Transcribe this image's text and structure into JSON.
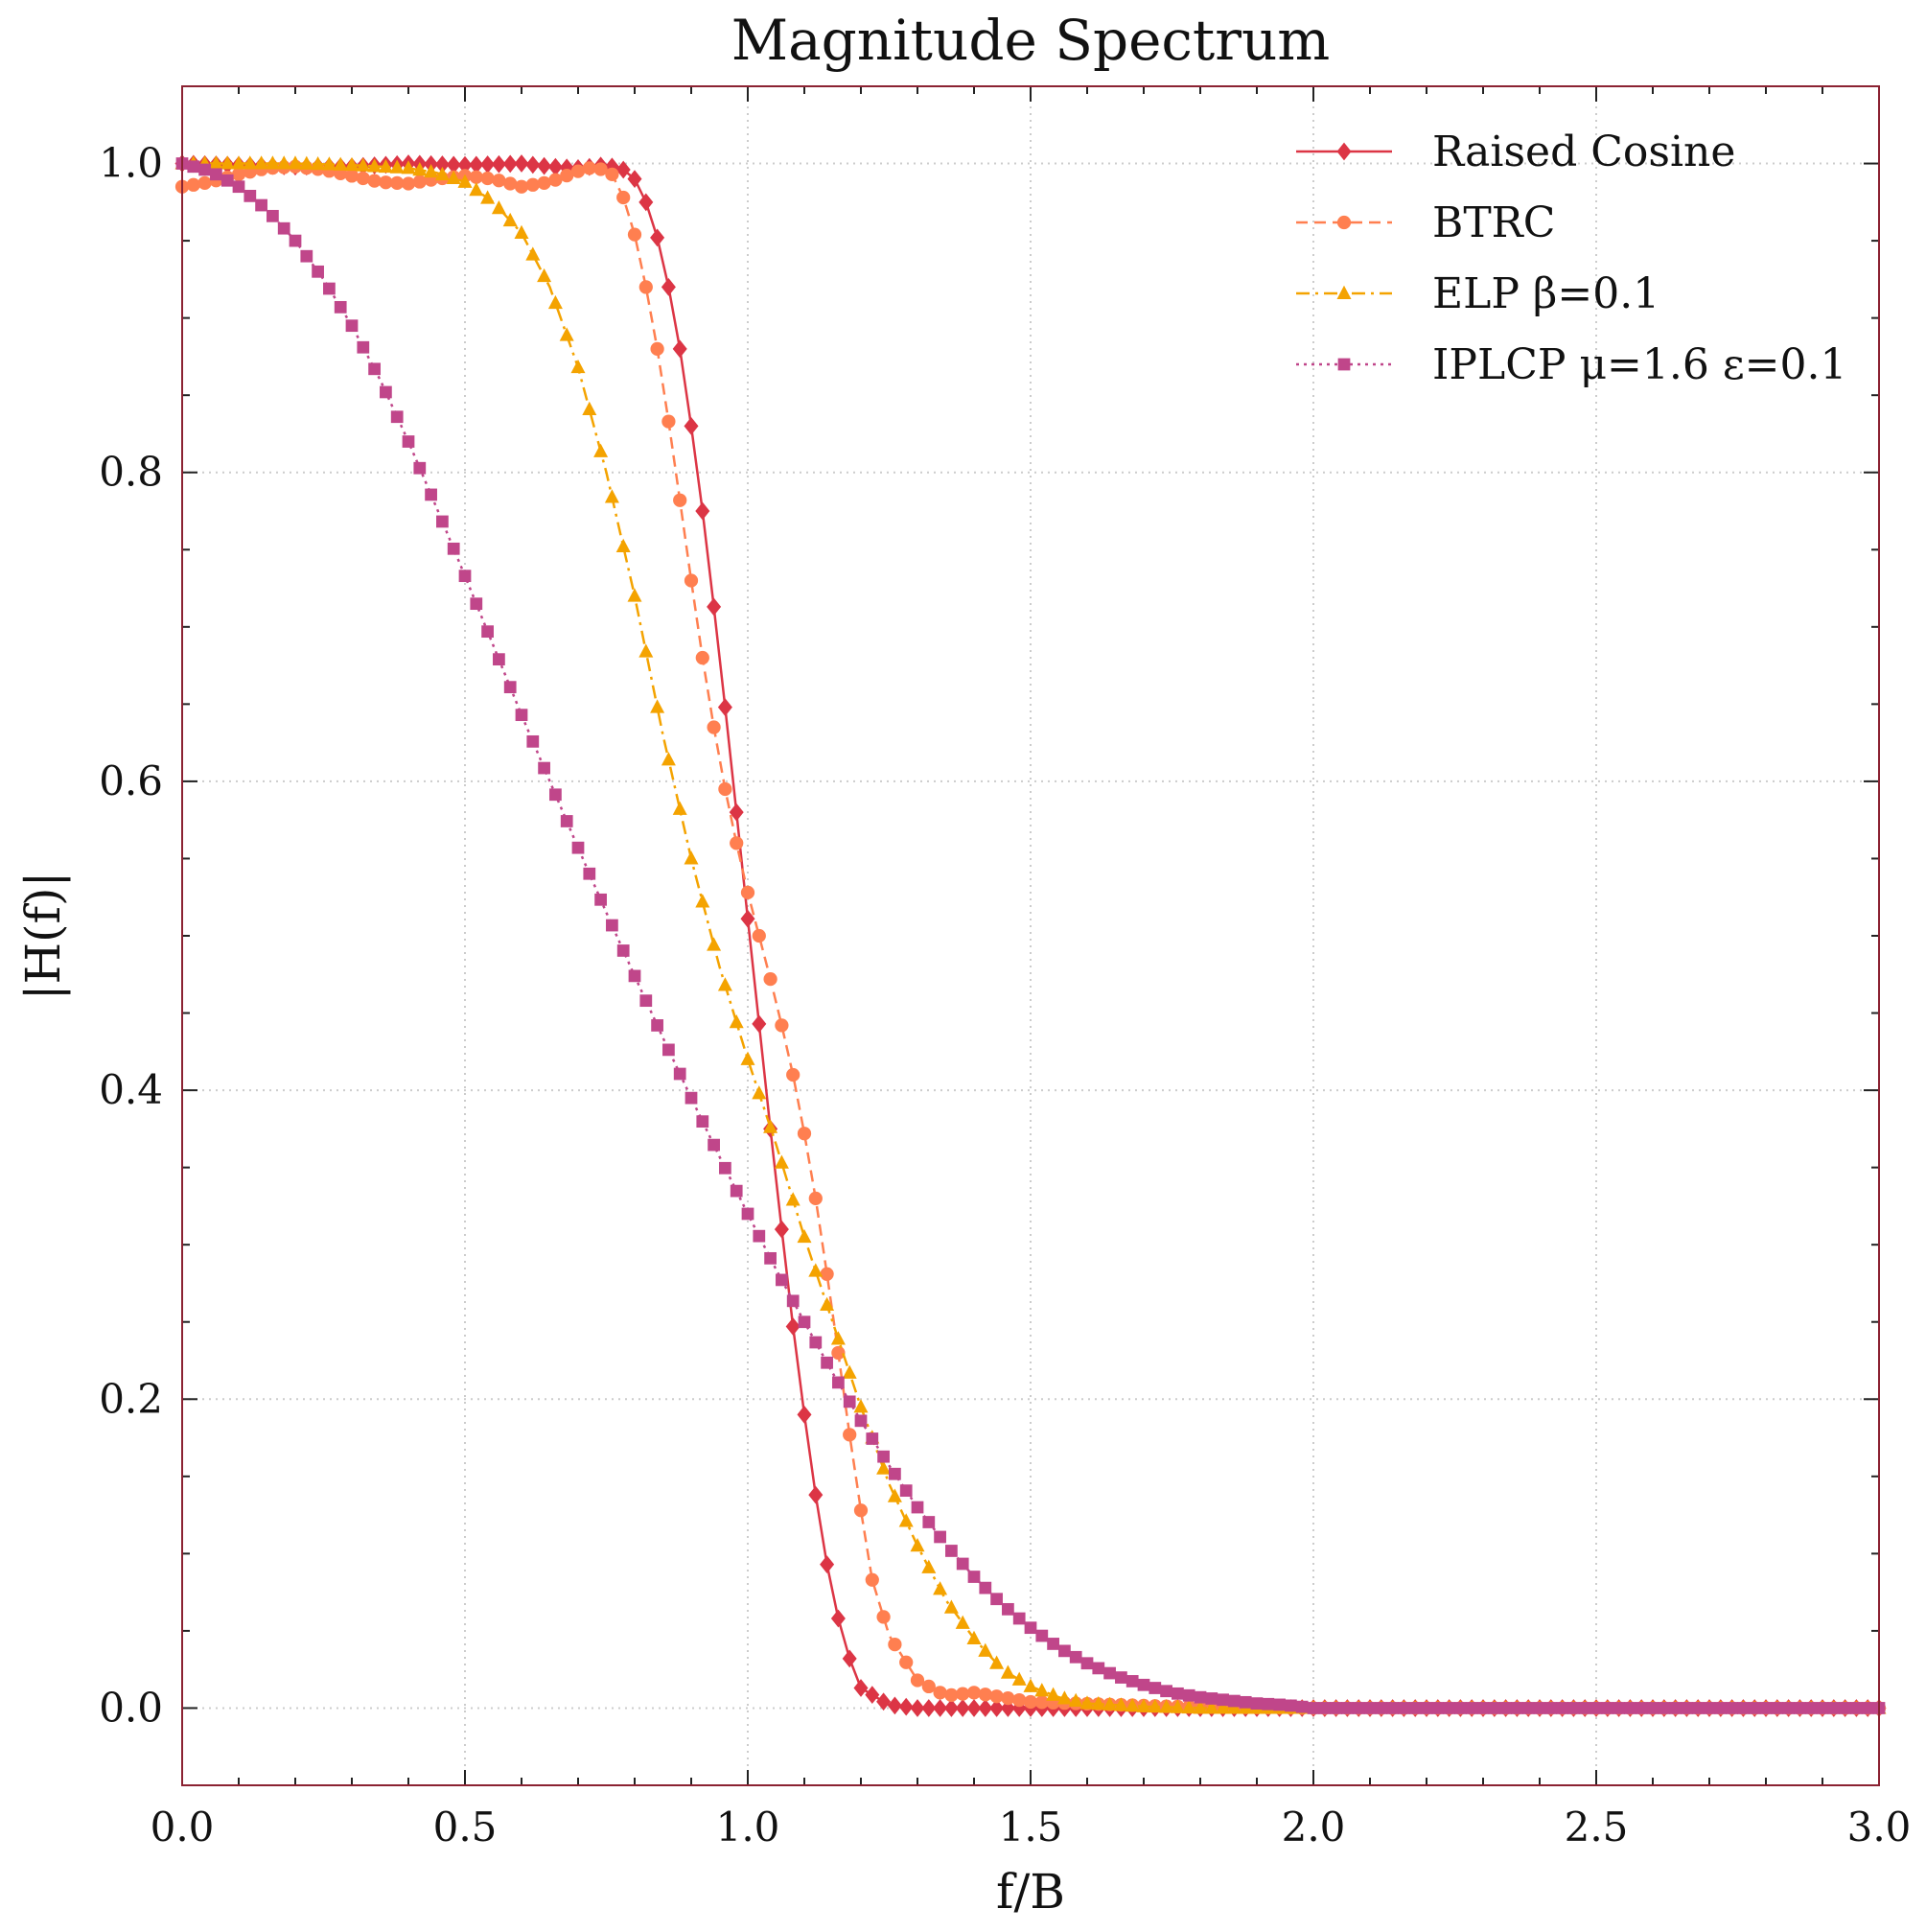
{
  "chart_data": {
    "type": "line",
    "title": "Magnitude Spectrum",
    "xlabel": "f/B",
    "ylabel": "|H(f)|",
    "xlim": [
      0.0,
      3.0
    ],
    "ylim": [
      -0.05,
      1.05
    ],
    "x_ticks": [
      "0.0",
      "0.5",
      "1.0",
      "1.5",
      "2.0",
      "2.5",
      "3.0"
    ],
    "y_ticks": [
      "0.0",
      "0.2",
      "0.4",
      "0.6",
      "0.8",
      "1.0"
    ],
    "grid": true,
    "legend_position": "top-right",
    "series": [
      {
        "name": "Raised Cosine",
        "color": "#dc3545",
        "marker": "diamond",
        "line_style": "solid",
        "x": [
          0.0,
          0.1,
          0.2,
          0.3,
          0.4,
          0.5,
          0.6,
          0.65,
          0.7,
          0.75,
          0.78,
          0.8,
          0.82,
          0.84,
          0.86,
          0.88,
          0.9,
          0.92,
          0.94,
          0.96,
          0.98,
          1.0,
          1.02,
          1.04,
          1.06,
          1.08,
          1.1,
          1.12,
          1.14,
          1.16,
          1.18,
          1.2,
          1.25,
          1.3,
          1.4,
          1.5,
          1.75,
          2.0,
          2.5,
          3.0
        ],
        "y": [
          1.0,
          0.999,
          0.998,
          0.998,
          1.0,
          0.999,
          1.0,
          0.998,
          0.997,
          0.999,
          0.996,
          0.99,
          0.975,
          0.952,
          0.92,
          0.88,
          0.83,
          0.775,
          0.713,
          0.648,
          0.58,
          0.511,
          0.443,
          0.375,
          0.31,
          0.247,
          0.19,
          0.138,
          0.093,
          0.058,
          0.032,
          0.013,
          0.002,
          0.0,
          0.0,
          0.0,
          0.0,
          0.0,
          0.0,
          0.0
        ]
      },
      {
        "name": "BTRC",
        "color": "#ff7f50",
        "marker": "circle",
        "line_style": "dashed",
        "x": [
          0.0,
          0.05,
          0.1,
          0.15,
          0.2,
          0.25,
          0.3,
          0.35,
          0.4,
          0.45,
          0.5,
          0.55,
          0.6,
          0.65,
          0.7,
          0.73,
          0.76,
          0.78,
          0.8,
          0.82,
          0.84,
          0.86,
          0.88,
          0.9,
          0.92,
          0.94,
          0.96,
          0.98,
          1.0,
          1.02,
          1.04,
          1.06,
          1.08,
          1.1,
          1.12,
          1.14,
          1.16,
          1.18,
          1.2,
          1.22,
          1.25,
          1.3,
          1.35,
          1.4,
          1.5,
          1.75,
          2.0,
          2.5,
          3.0
        ],
        "y": [
          0.985,
          0.988,
          0.993,
          0.997,
          0.998,
          0.996,
          0.992,
          0.988,
          0.987,
          0.99,
          0.992,
          0.99,
          0.985,
          0.988,
          0.995,
          0.998,
          0.993,
          0.978,
          0.954,
          0.92,
          0.88,
          0.833,
          0.782,
          0.73,
          0.68,
          0.635,
          0.595,
          0.56,
          0.528,
          0.5,
          0.472,
          0.442,
          0.41,
          0.372,
          0.33,
          0.281,
          0.23,
          0.177,
          0.128,
          0.083,
          0.047,
          0.018,
          0.008,
          0.01,
          0.004,
          0.001,
          0.0,
          0.0,
          0.0
        ]
      },
      {
        "name": "ELP   β=0.1",
        "color": "#f4a300",
        "marker": "triangle",
        "line_style": "dashdot",
        "x": [
          0.0,
          0.1,
          0.2,
          0.3,
          0.4,
          0.45,
          0.5,
          0.55,
          0.6,
          0.65,
          0.7,
          0.75,
          0.8,
          0.85,
          0.9,
          0.95,
          1.0,
          1.05,
          1.1,
          1.15,
          1.2,
          1.25,
          1.3,
          1.35,
          1.4,
          1.45,
          1.5,
          1.55,
          1.6,
          1.7,
          1.8,
          2.0,
          2.5,
          3.0
        ],
        "y": [
          1.0,
          1.0,
          1.0,
          0.999,
          0.997,
          0.994,
          0.988,
          0.975,
          0.955,
          0.92,
          0.868,
          0.8,
          0.72,
          0.63,
          0.55,
          0.48,
          0.42,
          0.365,
          0.305,
          0.25,
          0.195,
          0.145,
          0.105,
          0.07,
          0.045,
          0.025,
          0.014,
          0.007,
          0.003,
          0.001,
          0.0,
          0.0,
          0.0,
          0.0
        ]
      },
      {
        "name": "IPLCP μ=1.6  ε=0.1",
        "color": "#c0468a",
        "marker": "square",
        "line_style": "dotted",
        "x": [
          0.0,
          0.05,
          0.1,
          0.15,
          0.2,
          0.25,
          0.3,
          0.35,
          0.4,
          0.45,
          0.5,
          0.55,
          0.6,
          0.65,
          0.7,
          0.75,
          0.8,
          0.85,
          0.9,
          0.95,
          1.0,
          1.05,
          1.1,
          1.15,
          1.2,
          1.25,
          1.3,
          1.35,
          1.4,
          1.45,
          1.5,
          1.55,
          1.6,
          1.65,
          1.7,
          1.75,
          1.8,
          1.85,
          1.9,
          1.95,
          2.0,
          2.1,
          2.2,
          2.3,
          2.5,
          2.75,
          3.0
        ],
        "y": [
          1.0,
          0.995,
          0.985,
          0.97,
          0.95,
          0.925,
          0.895,
          0.86,
          0.82,
          0.777,
          0.733,
          0.688,
          0.643,
          0.6,
          0.557,
          0.515,
          0.474,
          0.434,
          0.395,
          0.357,
          0.32,
          0.284,
          0.25,
          0.217,
          0.186,
          0.157,
          0.13,
          0.106,
          0.085,
          0.067,
          0.052,
          0.039,
          0.029,
          0.021,
          0.015,
          0.01,
          0.007,
          0.005,
          0.003,
          0.002,
          0.0,
          0.0,
          0.0,
          0.0,
          0.0,
          0.0,
          0.0
        ]
      }
    ]
  }
}
